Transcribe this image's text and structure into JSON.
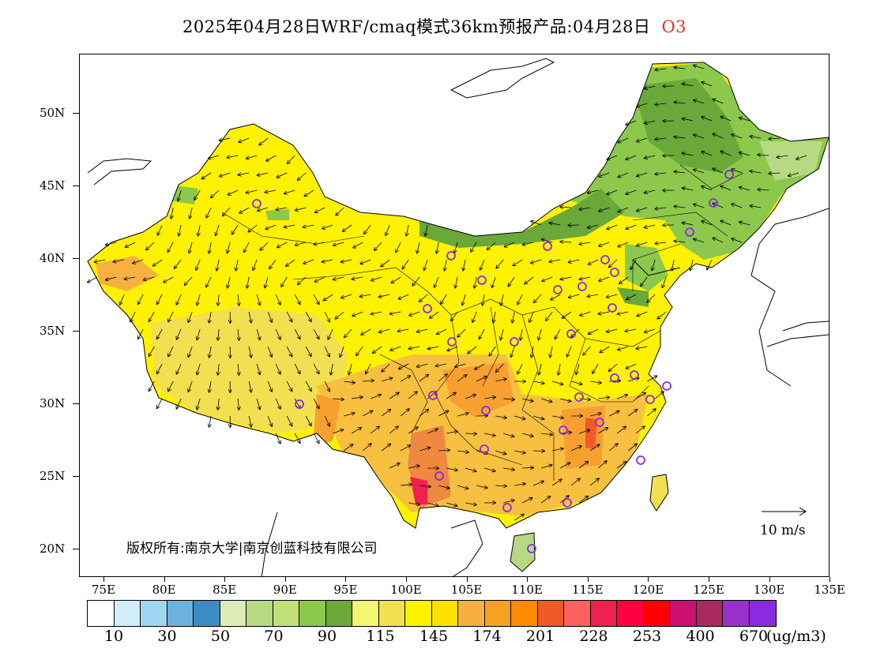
{
  "title": {
    "main": "2025年04月28日WRF/cmaq模式36km预报产品:04月28日",
    "pollutant": "O3"
  },
  "axes": {
    "y_labels": [
      "50N",
      "45N",
      "40N",
      "35N",
      "30N",
      "25N",
      "20N"
    ],
    "x_labels": [
      "75E",
      "80E",
      "85E",
      "90E",
      "95E",
      "100E",
      "105E",
      "110E",
      "115E",
      "120E",
      "125E",
      "130E",
      "135E"
    ]
  },
  "copyright": "版权所有:南京大学|南京创蓝科技有限公司",
  "wind_legend": {
    "label": "10 m/s"
  },
  "colorbar": {
    "labels": [
      "10",
      "30",
      "50",
      "70",
      "90",
      "115",
      "145",
      "174",
      "201",
      "228",
      "253",
      "400",
      "670"
    ],
    "units": "(ug/m3)",
    "colors": [
      "#ffffff",
      "#d2ecfa",
      "#9ed6f2",
      "#6cb2de",
      "#3f8cc4",
      "#dcebb8",
      "#b8d984",
      "#c2e07a",
      "#8cc84c",
      "#6aa83a",
      "#f2f76c",
      "#f2e050",
      "#fff200",
      "#ffe100",
      "#f7b040",
      "#f8a020",
      "#ff8a00",
      "#f05a28",
      "#ff6060",
      "#f02050",
      "#ff0040",
      "#ff0000",
      "#cc1070",
      "#aa2860",
      "#9930cc",
      "#8a2be2"
    ]
  },
  "colors": {
    "title_accent": "#e03030",
    "station_marker": "#8a2be2",
    "land_base": "#fff200"
  }
}
